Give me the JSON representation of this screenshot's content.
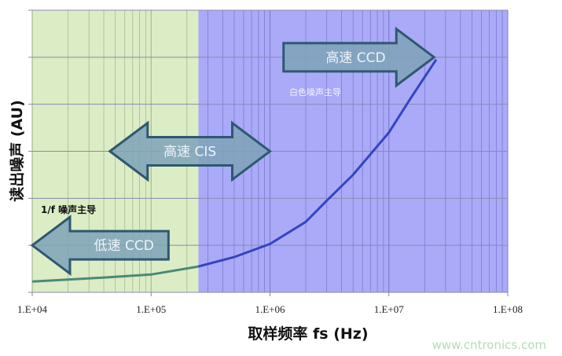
{
  "chart_data": {
    "type": "line",
    "title": "",
    "xlabel": "取样频率 fs (Hz)",
    "ylabel": "读出噪声 (AU)",
    "xscale": "log",
    "xlim": [
      10000,
      100000000
    ],
    "ylim": [
      0,
      6
    ],
    "grid": true,
    "x_tick_labels": [
      "1.E+04",
      "1.E+05",
      "1.E+06",
      "1.E+07",
      "1.E+08"
    ],
    "x_ticks": [
      10000,
      100000,
      1000000,
      10000000,
      100000000
    ],
    "series": [
      {
        "x": [
          10000,
          20000,
          50000,
          100000,
          250000,
          500000,
          1000000,
          2000000,
          3000000,
          5000000,
          10000000,
          15000000,
          25000000
        ],
        "y": [
          0.23,
          0.27,
          0.33,
          0.38,
          0.55,
          0.75,
          1.03,
          1.5,
          1.95,
          2.5,
          3.4,
          4.1,
          4.95
        ]
      }
    ],
    "regions": [
      {
        "label": "1/f 噪声主导",
        "x_range": [
          10000,
          250000
        ],
        "color": "#dcecc4"
      },
      {
        "label": "白色噪声主导",
        "x_range": [
          250000,
          100000000
        ],
        "color": "#aaaaf8"
      }
    ],
    "annotations": [
      {
        "label": "低速  CCD",
        "direction": "left",
        "x_range": [
          10000,
          140000
        ],
        "y": 1
      },
      {
        "label": "高速  CIS",
        "direction": "both",
        "x_range": [
          45000,
          1000000
        ],
        "y": 3
      },
      {
        "label": "高速 CCD",
        "direction": "right",
        "x_range": [
          1300000,
          24000000
        ],
        "y": 5
      }
    ],
    "colors": {
      "curve_low": "#4a8a78",
      "curve_high": "#3545c0",
      "arrow_fill": "#7ea3b8",
      "arrow_stroke": "#2f5870"
    }
  },
  "watermark": "www.cntronics.com"
}
